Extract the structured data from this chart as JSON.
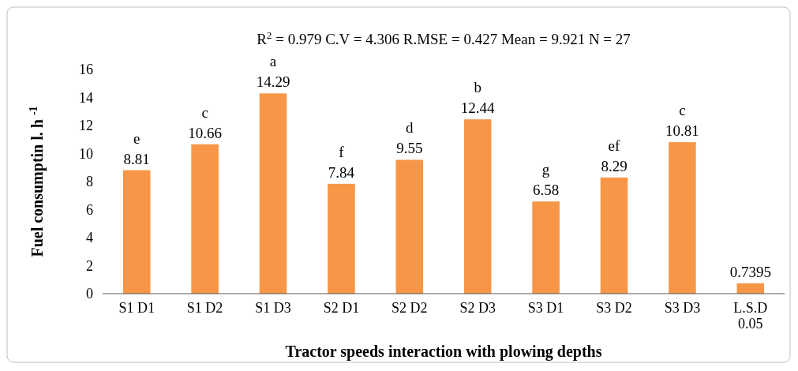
{
  "chart_data": {
    "type": "bar",
    "title": "R$^{2}$ = 0.979    C.V = 4.306    R.MSE = 0.427    Mean = 9.921    N = 27",
    "xlabel": "Tractor speeds interaction with plowing depths",
    "ylabel": "Fuel  consumptin  l. h $^{-1}$",
    "categories": [
      "S1 D1",
      "S1 D2",
      "S1 D3",
      "S2 D1",
      "S2 D2",
      "S2 D3",
      "S3 D1",
      "S3 D2",
      "S3 D3",
      "L.S.D\n0.05"
    ],
    "values": [
      8.81,
      10.66,
      14.29,
      7.84,
      9.55,
      12.44,
      6.58,
      8.29,
      10.81,
      0.7395
    ],
    "color": "#f79646",
    "ylim": [
      0,
      16
    ],
    "yticks": [
      0,
      2,
      4,
      6,
      8,
      10,
      12,
      14,
      16
    ],
    "grid": false,
    "data_labels": true,
    "annotations": [
      {
        "text": "e",
        "x": "S1 D1",
        "y": 8.81
      },
      {
        "text": "c",
        "x": "S1 D2",
        "y": 10.66
      },
      {
        "text": "a",
        "x": "S1 D3",
        "y": 14.29
      },
      {
        "text": "f",
        "x": "S2 D1",
        "y": 7.84
      },
      {
        "text": "d",
        "x": "S2 D2",
        "y": 9.55
      },
      {
        "text": "b",
        "x": "S2 D3",
        "y": 12.44
      },
      {
        "text": "g",
        "x": "S3 D1",
        "y": 6.58
      },
      {
        "text": "ef",
        "x": "S3 D2",
        "y": 8.29
      },
      {
        "text": "c",
        "x": "S3 D3",
        "y": 10.81
      }
    ]
  }
}
